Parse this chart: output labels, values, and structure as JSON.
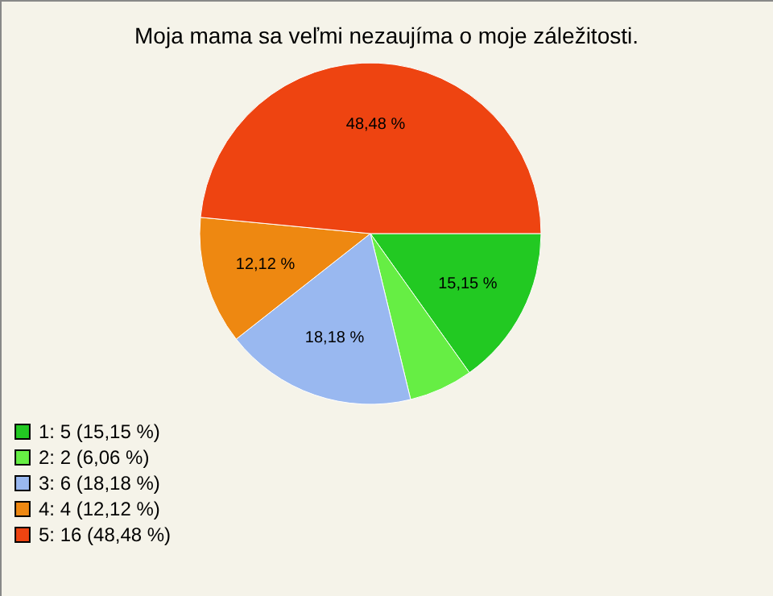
{
  "chart_data": {
    "type": "pie",
    "title": "Moja mama sa veľmi nezaujíma o moje záležitosti.",
    "categories": [
      "1: 5 (15,15 %)",
      "2: 2 (6,06 %)",
      "3: 6 (18,18 %)",
      "4: 4 (12,12 %)",
      "5: 16 (48,48 %)"
    ],
    "values": [
      15.15,
      6.06,
      18.18,
      12.12,
      48.48
    ],
    "value_labels": [
      "15,15 %",
      null,
      "18,18 %",
      "12,12 %",
      "48,48 %"
    ],
    "colors": [
      "#22c922",
      "#66ee44",
      "#99b8f0",
      "#ee8811",
      "#ee4411"
    ],
    "legend": "bottom left"
  }
}
